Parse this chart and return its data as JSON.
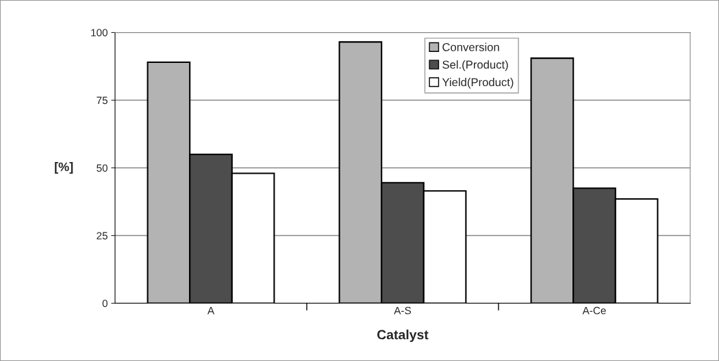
{
  "chart_data": {
    "type": "bar",
    "xlabel": "Catalyst",
    "ylabel": "[%]",
    "categories": [
      "A",
      "A-S",
      "A-Ce"
    ],
    "series": [
      {
        "name": "Conversion",
        "color": "#b3b3b3",
        "values": [
          89,
          96.5,
          90.5
        ]
      },
      {
        "name": "Sel.(Product)",
        "color": "#4d4d4d",
        "values": [
          55,
          44.5,
          42.5
        ]
      },
      {
        "name": "Yield(Product)",
        "color": "#ffffff",
        "values": [
          48,
          41.5,
          38.5
        ]
      }
    ],
    "ylim": [
      0,
      100
    ],
    "yticks": [
      0,
      25,
      50,
      75,
      100
    ],
    "grid": "y",
    "legend": "top"
  }
}
